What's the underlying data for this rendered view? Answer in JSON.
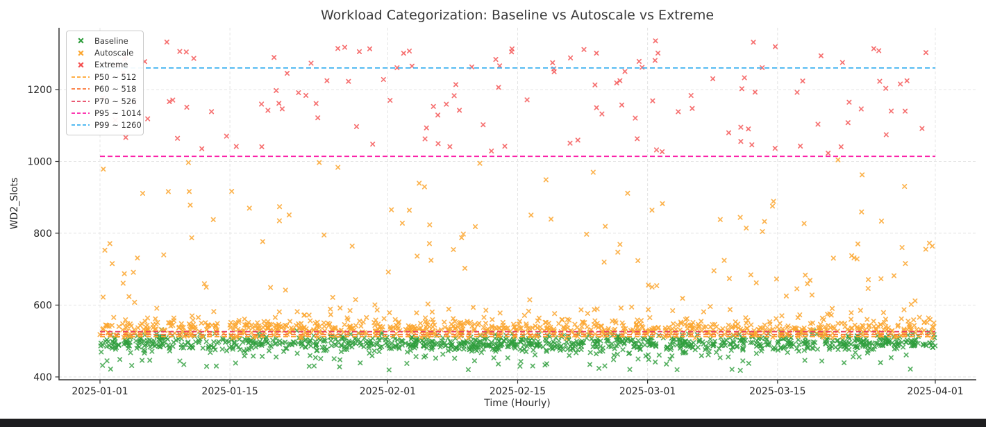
{
  "chart_data": {
    "type": "scatter",
    "title": "Workload Categorization: Baseline vs Autoscale vs Extreme",
    "xlabel": "Time (Hourly)",
    "ylabel": "WD2_Slots",
    "grid": true,
    "legend_position": "upper left",
    "x_axis": {
      "start_date": "2025-01-01",
      "end_date": "2025-04-01",
      "span_days": 90,
      "ticks": [
        {
          "label": "2025-01-01",
          "day": 0
        },
        {
          "label": "2025-01-15",
          "day": 14
        },
        {
          "label": "2025-02-01",
          "day": 31
        },
        {
          "label": "2025-02-15",
          "day": 45
        },
        {
          "label": "2025-03-01",
          "day": 59
        },
        {
          "label": "2025-03-15",
          "day": 73
        },
        {
          "label": "2025-04-01",
          "day": 90
        }
      ]
    },
    "y_axis": {
      "ticks": [
        400,
        600,
        800,
        1000,
        1200
      ],
      "ylim": [
        392,
        1372
      ]
    },
    "series": [
      {
        "name": "Baseline",
        "part": "core",
        "marker": "x",
        "color": "#2e9d3c",
        "opacity": 0.8,
        "count": 1010,
        "x_days": [
          0,
          90
        ],
        "y_dist": {
          "type": "normal",
          "mean": 493,
          "std": 13,
          "min": 455,
          "max": 532
        }
      },
      {
        "name": "Baseline",
        "part": "low-tail",
        "marker": "x",
        "color": "#2e9d3c",
        "opacity": 0.8,
        "count": 70,
        "x_days": [
          0,
          90
        ],
        "y_dist": {
          "type": "uniform",
          "min": 418,
          "max": 468
        }
      },
      {
        "name": "Autoscale",
        "part": "band",
        "marker": "x",
        "color": "#fca62f",
        "opacity": 0.85,
        "count": 770,
        "x_days": [
          0,
          90
        ],
        "y_dist": {
          "type": "normal",
          "mean": 534,
          "std": 13,
          "min": 507,
          "max": 577
        }
      },
      {
        "name": "Autoscale",
        "part": "band-top",
        "marker": "x",
        "color": "#fca62f",
        "opacity": 0.85,
        "count": 55,
        "x_days": [
          0,
          90
        ],
        "y_dist": {
          "type": "uniform",
          "min": 558,
          "max": 596
        }
      },
      {
        "name": "Autoscale",
        "part": "bursts",
        "marker": "x",
        "color": "#fca62f",
        "opacity": 0.85,
        "count": 112,
        "x_days": [
          0,
          90
        ],
        "y_dist": {
          "type": "uniform",
          "min": 598,
          "max": 1010
        }
      },
      {
        "name": "Extreme",
        "part": "core",
        "marker": "x",
        "color": "#f44e4e",
        "opacity": 0.8,
        "count": 132,
        "x_days": [
          0,
          90
        ],
        "y_dist": {
          "type": "uniform",
          "min": 1016,
          "max": 1336
        }
      }
    ],
    "ref_lines": [
      {
        "label": "P50 ~ 512",
        "value": 512,
        "color": "#ffa32b"
      },
      {
        "label": "P60 ~ 518",
        "value": 518,
        "color": "#fb7433"
      },
      {
        "label": "P70 ~ 526",
        "value": 526,
        "color": "#e84360"
      },
      {
        "label": "P95 ~ 1014",
        "value": 1014,
        "color": "#fb1fa8"
      },
      {
        "label": "P99 ~ 1260",
        "value": 1260,
        "color": "#3bb1f0"
      }
    ],
    "legend": {
      "items": [
        {
          "label": "Baseline",
          "color": "#2e9d3c",
          "swatch": "x"
        },
        {
          "label": "Autoscale",
          "color": "#fca62f",
          "swatch": "x"
        },
        {
          "label": "Extreme",
          "color": "#f44e4e",
          "swatch": "x"
        },
        {
          "label": "P50 ~ 512",
          "color": "#ffa32b",
          "swatch": "dash"
        },
        {
          "label": "P60 ~ 518",
          "color": "#fb7433",
          "swatch": "dash"
        },
        {
          "label": "P70 ~ 526",
          "color": "#e84360",
          "swatch": "dash"
        },
        {
          "label": "P95 ~ 1014",
          "color": "#fb1fa8",
          "swatch": "dash"
        },
        {
          "label": "P99 ~ 1260",
          "color": "#3bb1f0",
          "swatch": "dash"
        }
      ]
    },
    "colors": {
      "axis": "#333333",
      "tick_label": "#262626",
      "grid": "#e4e4e4",
      "title": "#3a3a3a"
    }
  },
  "window": {
    "bottom_bar_color": "#1d1d1f"
  }
}
